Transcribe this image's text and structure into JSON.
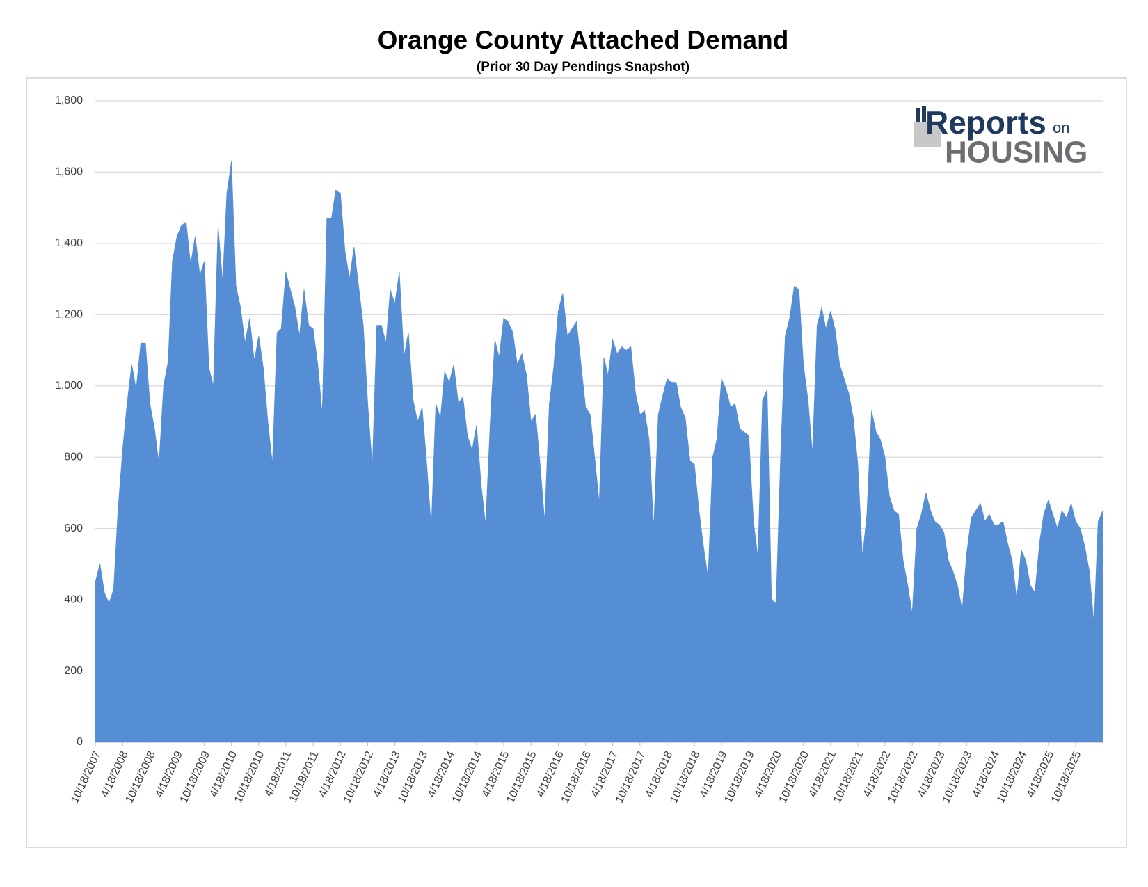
{
  "chart_data": {
    "type": "area",
    "title": "Orange County Attached Demand",
    "subtitle": "(Prior 30 Day Pendings Snapshot)",
    "color": "#558ed5",
    "grid": true,
    "ylim": [
      0,
      1800
    ],
    "yticks": [
      0,
      200,
      400,
      600,
      800,
      {
        "value": 1000,
        "label": "1,000"
      },
      {
        "value": 1200,
        "label": "1,200"
      },
      {
        "value": 1400,
        "label": "1,400"
      },
      {
        "value": 1600,
        "label": "1,600"
      },
      {
        "value": 1800,
        "label": "1,800"
      }
    ],
    "xlim": [
      "10/18/2007",
      "4/18/2026"
    ],
    "xticks": [
      "10/18/2007",
      "4/18/2008",
      "10/18/2008",
      "4/18/2009",
      "10/18/2009",
      "4/18/2010",
      "10/18/2010",
      "4/18/2011",
      "10/18/2011",
      "4/18/2012",
      "10/18/2012",
      "4/18/2013",
      "10/18/2013",
      "4/18/2014",
      "10/18/2014",
      "4/18/2015",
      "10/18/2015",
      "4/18/2016",
      "10/18/2016",
      "4/18/2017",
      "10/18/2017",
      "4/18/2018",
      "10/18/2018",
      "4/18/2019",
      "10/18/2019",
      "4/18/2020",
      "10/18/2020",
      "4/18/2021",
      "10/18/2021",
      "4/18/2022",
      "10/18/2022",
      "4/18/2023",
      "10/18/2023",
      "4/18/2024",
      "10/18/2024",
      "4/18/2025",
      "10/18/2025"
    ],
    "x": [
      "10/18/2007",
      "11/18/2007",
      "12/18/2007",
      "1/18/2008",
      "2/18/2008",
      "3/18/2008",
      "4/18/2008",
      "5/18/2008",
      "6/18/2008",
      "7/18/2008",
      "8/18/2008",
      "9/18/2008",
      "10/18/2008",
      "11/18/2008",
      "12/18/2008",
      "1/18/2009",
      "2/18/2009",
      "3/18/2009",
      "4/18/2009",
      "5/18/2009",
      "6/18/2009",
      "7/18/2009",
      "8/18/2009",
      "9/18/2009",
      "10/18/2009",
      "11/18/2009",
      "12/18/2009",
      "1/18/2010",
      "2/18/2010",
      "3/18/2010",
      "4/18/2010",
      "5/18/2010",
      "6/18/2010",
      "7/18/2010",
      "8/18/2010",
      "9/18/2010",
      "10/18/2010",
      "11/18/2010",
      "12/18/2010",
      "1/18/2011",
      "2/18/2011",
      "3/18/2011",
      "4/18/2011",
      "5/18/2011",
      "6/18/2011",
      "7/18/2011",
      "8/18/2011",
      "9/18/2011",
      "10/18/2011",
      "11/18/2011",
      "12/18/2011",
      "1/18/2012",
      "2/18/2012",
      "3/18/2012",
      "4/18/2012",
      "5/18/2012",
      "6/18/2012",
      "7/18/2012",
      "8/18/2012",
      "9/18/2012",
      "10/18/2012",
      "11/18/2012",
      "12/18/2012",
      "1/18/2013",
      "2/18/2013",
      "3/18/2013",
      "4/18/2013",
      "5/18/2013",
      "6/18/2013",
      "7/18/2013",
      "8/18/2013",
      "9/18/2013",
      "10/18/2013",
      "11/18/2013",
      "12/18/2013",
      "1/18/2014",
      "2/18/2014",
      "3/18/2014",
      "4/18/2014",
      "5/18/2014",
      "6/18/2014",
      "7/18/2014",
      "8/18/2014",
      "9/18/2014",
      "10/18/2014",
      "11/18/2014",
      "12/18/2014",
      "1/18/2015",
      "2/18/2015",
      "3/18/2015",
      "4/18/2015",
      "5/18/2015",
      "6/18/2015",
      "7/18/2015",
      "8/18/2015",
      "9/18/2015",
      "10/18/2015",
      "11/18/2015",
      "12/18/2015",
      "1/18/2016",
      "2/18/2016",
      "3/18/2016",
      "4/18/2016",
      "5/18/2016",
      "6/18/2016",
      "7/18/2016",
      "8/18/2016",
      "9/18/2016",
      "10/18/2016",
      "11/18/2016",
      "12/18/2016",
      "1/18/2017",
      "2/18/2017",
      "3/18/2017",
      "4/18/2017",
      "5/18/2017",
      "6/18/2017",
      "7/18/2017",
      "8/18/2017",
      "9/18/2017",
      "10/18/2017",
      "11/18/2017",
      "12/18/2017",
      "1/18/2018",
      "2/18/2018",
      "3/18/2018",
      "4/18/2018",
      "5/18/2018",
      "6/18/2018",
      "7/18/2018",
      "8/18/2018",
      "9/18/2018",
      "10/18/2018",
      "11/18/2018",
      "12/18/2018",
      "1/18/2019",
      "2/18/2019",
      "3/18/2019",
      "4/18/2019",
      "5/18/2019",
      "6/18/2019",
      "7/18/2019",
      "8/18/2019",
      "9/18/2019",
      "10/18/2019",
      "11/18/2019",
      "12/18/2019",
      "1/18/2020",
      "2/18/2020",
      "3/18/2020",
      "4/18/2020",
      "5/18/2020",
      "6/18/2020",
      "7/18/2020",
      "8/18/2020",
      "9/18/2020",
      "10/18/2020",
      "11/18/2020",
      "12/18/2020",
      "1/18/2021",
      "2/18/2021",
      "3/18/2021",
      "4/18/2021",
      "5/18/2021",
      "6/18/2021",
      "7/18/2021",
      "8/18/2021",
      "9/18/2021",
      "10/18/2021",
      "11/18/2021",
      "12/18/2021",
      "1/18/2022",
      "2/18/2022",
      "3/18/2022",
      "4/18/2022",
      "5/18/2022",
      "6/18/2022",
      "7/18/2022",
      "8/18/2022",
      "9/18/2022",
      "10/18/2022",
      "11/18/2022",
      "12/18/2022",
      "1/18/2023",
      "2/18/2023",
      "3/18/2023",
      "4/18/2023",
      "5/18/2023",
      "6/18/2023",
      "7/18/2023",
      "8/18/2023",
      "9/18/2023",
      "10/18/2023",
      "11/18/2023",
      "12/18/2023",
      "1/18/2024",
      "2/18/2024",
      "3/18/2024",
      "4/18/2024",
      "5/18/2024",
      "6/18/2024",
      "7/18/2024",
      "8/18/2024",
      "9/18/2024",
      "10/18/2024",
      "11/18/2024",
      "12/18/2024",
      "1/18/2025",
      "2/18/2025",
      "3/18/2025",
      "4/18/2025",
      "5/18/2025",
      "6/18/2025",
      "7/18/2025",
      "8/18/2025",
      "9/18/2025",
      "10/18/2025",
      "11/18/2025",
      "12/18/2025",
      "1/18/2026",
      "2/18/2026",
      "3/18/2026",
      "4/18/2026"
    ],
    "values": [
      450,
      500,
      420,
      390,
      430,
      650,
      820,
      950,
      1060,
      990,
      1120,
      1120,
      950,
      880,
      780,
      1000,
      1070,
      1350,
      1420,
      1450,
      1460,
      1340,
      1420,
      1310,
      1350,
      1050,
      1000,
      1450,
      1290,
      1540,
      1630,
      1280,
      1220,
      1120,
      1190,
      1070,
      1140,
      1050,
      900,
      780,
      1150,
      1160,
      1320,
      1270,
      1220,
      1140,
      1270,
      1170,
      1160,
      1060,
      920,
      1470,
      1470,
      1550,
      1540,
      1380,
      1300,
      1390,
      1280,
      1170,
      950,
      770,
      1170,
      1170,
      1120,
      1270,
      1230,
      1320,
      1080,
      1150,
      960,
      900,
      940,
      780,
      600,
      950,
      910,
      1040,
      1010,
      1060,
      950,
      970,
      860,
      820,
      890,
      720,
      610,
      900,
      1130,
      1080,
      1190,
      1180,
      1150,
      1060,
      1090,
      1030,
      900,
      920,
      780,
      620,
      950,
      1050,
      1210,
      1260,
      1140,
      1160,
      1180,
      1060,
      940,
      920,
      800,
      670,
      1080,
      1030,
      1130,
      1090,
      1110,
      1100,
      1110,
      980,
      920,
      930,
      850,
      600,
      920,
      970,
      1020,
      1010,
      1010,
      940,
      910,
      790,
      780,
      650,
      550,
      460,
      800,
      850,
      1020,
      990,
      940,
      950,
      880,
      870,
      860,
      620,
      520,
      960,
      990,
      400,
      390,
      800,
      1140,
      1190,
      1280,
      1270,
      1060,
      960,
      810,
      1170,
      1220,
      1160,
      1210,
      1160,
      1060,
      1020,
      980,
      910,
      780,
      520,
      640,
      930,
      870,
      850,
      800,
      690,
      650,
      640,
      510,
      440,
      360,
      600,
      640,
      700,
      650,
      620,
      610,
      590,
      510,
      480,
      440,
      370,
      530,
      630,
      650,
      670,
      620,
      640,
      610,
      610,
      620,
      560,
      510,
      400,
      540,
      510,
      440,
      420,
      560,
      640,
      680,
      640,
      600,
      650,
      630,
      670,
      620,
      600,
      550,
      480,
      330,
      620,
      650
    ]
  },
  "logo": {
    "brand": "Reports",
    "small": "on",
    "line2": "HOUSING"
  }
}
